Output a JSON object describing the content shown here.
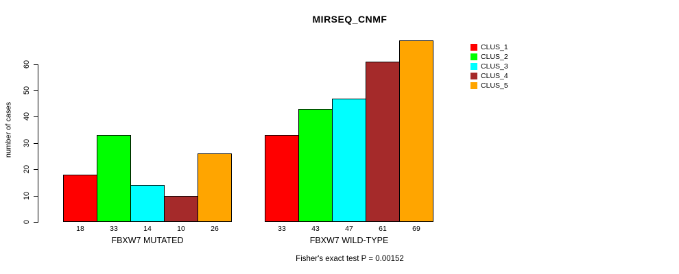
{
  "title": "MIRSEQ_CNMF",
  "legend": {
    "items": [
      {
        "label": "CLUS_1",
        "color": "#FF0000"
      },
      {
        "label": "CLUS_2",
        "color": "#00FF00"
      },
      {
        "label": "CLUS_3",
        "color": "#00FFFF"
      },
      {
        "label": "CLUS_4",
        "color": "#A52A2A"
      },
      {
        "label": "CLUS_5",
        "color": "#FFA500"
      }
    ]
  },
  "chart_data": {
    "type": "bar",
    "title": "MIRSEQ_CNMF",
    "xlabel": "",
    "ylabel": "number of cases",
    "yticks": [
      0,
      10,
      20,
      30,
      40,
      50,
      60
    ],
    "ylim": [
      0,
      69
    ],
    "grid": false,
    "legend_position": "right",
    "series_names": [
      "CLUS_1",
      "CLUS_2",
      "CLUS_3",
      "CLUS_4",
      "CLUS_5"
    ],
    "colors": [
      "#FF0000",
      "#00FF00",
      "#00FFFF",
      "#A52A2A",
      "#FFA500"
    ],
    "groups": [
      {
        "label": "FBXW7 MUTATED",
        "values": [
          18,
          33,
          14,
          10,
          26
        ]
      },
      {
        "label": "FBXW7 WILD-TYPE",
        "values": [
          33,
          43,
          47,
          61,
          69
        ]
      }
    ],
    "annotation": "Fisher's exact test P = 0.00152"
  }
}
